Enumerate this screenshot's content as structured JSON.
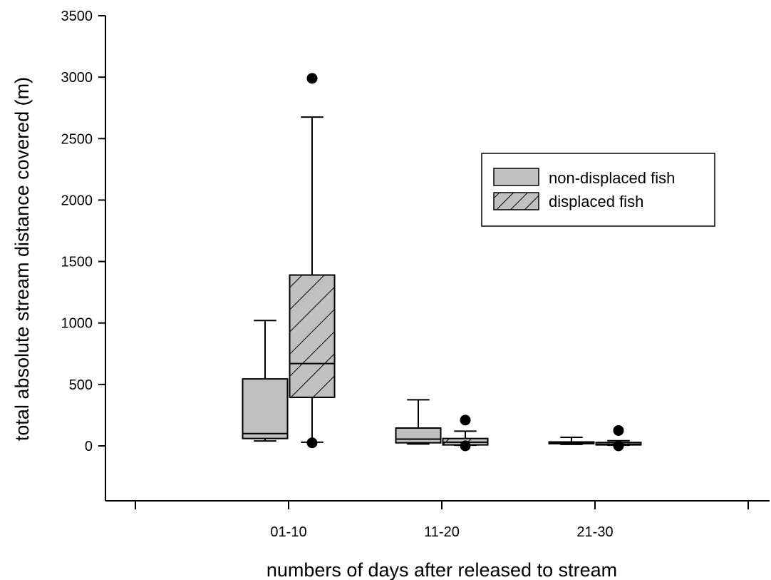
{
  "colors": {
    "box_fill": "#c0c0c0",
    "stroke": "#000000",
    "background": "#ffffff"
  },
  "chart_data": {
    "type": "box",
    "title": "",
    "xlabel": "numbers of days after released to stream",
    "ylabel": "total absolute stream distance covered (m)",
    "categories": [
      "01-10",
      "11-20",
      "21-30"
    ],
    "ylim": [
      -450,
      3500
    ],
    "yticks": [
      0,
      500,
      1000,
      1500,
      2000,
      2500,
      3000,
      3500
    ],
    "grid": false,
    "legend_position": "upper-right",
    "series": [
      {
        "name": "non-displaced fish",
        "hatch": "none",
        "boxes": [
          {
            "category": "01-10",
            "whisker_low": 40,
            "q1": 60,
            "median": 100,
            "q3": 545,
            "whisker_high": 1020,
            "outliers": []
          },
          {
            "category": "11-20",
            "whisker_low": 15,
            "q1": 25,
            "median": 55,
            "q3": 145,
            "whisker_high": 375,
            "outliers": []
          },
          {
            "category": "21-30",
            "whisker_low": 12,
            "q1": 18,
            "median": 24,
            "q3": 32,
            "whisker_high": 70,
            "outliers": []
          }
        ]
      },
      {
        "name": "displaced fish",
        "hatch": "diagonal",
        "boxes": [
          {
            "category": "01-10",
            "whisker_low": 30,
            "q1": 395,
            "median": 670,
            "q3": 1390,
            "whisker_high": 2675,
            "outliers": [
              2990,
              25
            ]
          },
          {
            "category": "11-20",
            "whisker_low": 5,
            "q1": 8,
            "median": 30,
            "q3": 60,
            "whisker_high": 120,
            "outliers": [
              210,
              0
            ]
          },
          {
            "category": "21-30",
            "whisker_low": 5,
            "q1": 8,
            "median": 14,
            "q3": 28,
            "whisker_high": 42,
            "outliers": [
              125,
              0
            ]
          }
        ]
      }
    ]
  }
}
